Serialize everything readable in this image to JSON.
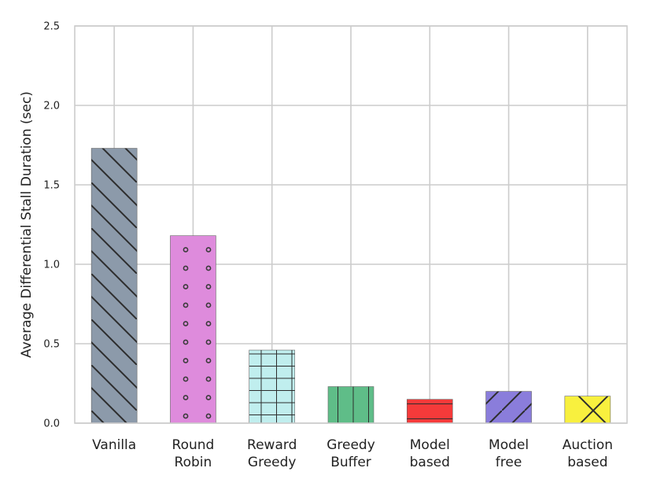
{
  "chart_data": {
    "type": "bar",
    "title": "",
    "xlabel": "",
    "ylabel": "Average Differential Stall Duration (sec)",
    "ylim": [
      0,
      2.5
    ],
    "yticks": [
      "0.0",
      "0.5",
      "1.0",
      "1.5",
      "2.0",
      "2.5"
    ],
    "grid": true,
    "categories": [
      [
        "Vanilla"
      ],
      [
        "Round",
        "Robin"
      ],
      [
        "Reward",
        "Greedy"
      ],
      [
        "Greedy",
        "Buffer"
      ],
      [
        "Model",
        "based"
      ],
      [
        "Model",
        "free"
      ],
      [
        "Auction",
        "based"
      ]
    ],
    "values": [
      1.73,
      1.18,
      0.46,
      0.23,
      0.15,
      0.2,
      0.17
    ],
    "colors": [
      "#8c9aaa",
      "#de8bdc",
      "#c0eeee",
      "#5fbd88",
      "#f53a3a",
      "#8a7ddb",
      "#f8f03e"
    ],
    "hatches": [
      "backslash",
      "dots",
      "grid",
      "vertical",
      "horizontal",
      "slash",
      "cross"
    ]
  }
}
